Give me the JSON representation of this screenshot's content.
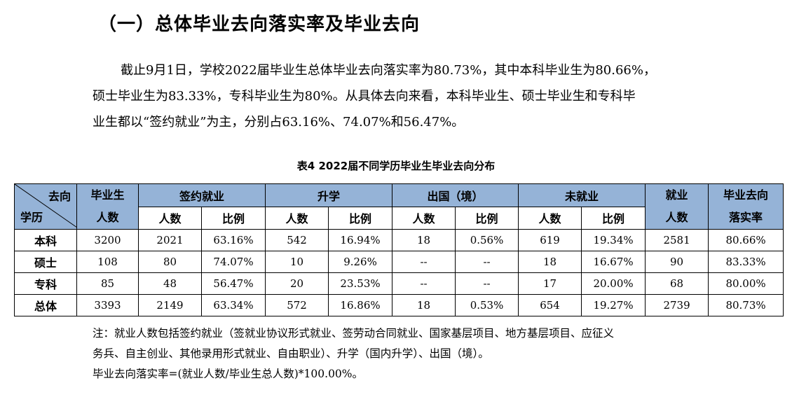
{
  "heading": "（一）总体毕业去向落实率及毕业去向",
  "paragraph": {
    "line1": "截止9月1日，学校2022届毕业生总体毕业去向落实率为80.73%，其中本科毕业生为80.66%，",
    "line2": "硕士毕业生为83.33%，专科毕业生为80%。从具体去向来看，本科毕业生、硕士毕业生和专科毕",
    "line3": "业生都以“签约就业”为主，分别占63.16%、74.07%和56.47%。"
  },
  "table": {
    "caption": "表4  2022届不同学历毕业生毕业去向分布",
    "header": {
      "corner_top": "去向",
      "corner_bottom": "学历",
      "graduates_top": "毕业生",
      "graduates_bottom": "人数",
      "signed": "签约就业",
      "further_study": "升学",
      "abroad": "出国（境）",
      "unemployed": "未就业",
      "employed_top": "就业",
      "employed_bottom": "人数",
      "rate_top": "毕业去向",
      "rate_bottom": "落实率",
      "sub_count": "人数",
      "sub_ratio": "比例"
    },
    "rows": [
      {
        "label": "本科",
        "graduates": "3200",
        "signed_n": "2021",
        "signed_p": "63.16%",
        "study_n": "542",
        "study_p": "16.94%",
        "abroad_n": "18",
        "abroad_p": "0.56%",
        "unemp_n": "619",
        "unemp_p": "19.34%",
        "employed": "2581",
        "rate": "80.66%"
      },
      {
        "label": "硕士",
        "graduates": "108",
        "signed_n": "80",
        "signed_p": "74.07%",
        "study_n": "10",
        "study_p": "9.26%",
        "abroad_n": "--",
        "abroad_p": "--",
        "unemp_n": "18",
        "unemp_p": "16.67%",
        "employed": "90",
        "rate": "83.33%"
      },
      {
        "label": "专科",
        "graduates": "85",
        "signed_n": "48",
        "signed_p": "56.47%",
        "study_n": "20",
        "study_p": "23.53%",
        "abroad_n": "--",
        "abroad_p": "--",
        "unemp_n": "17",
        "unemp_p": "20.00%",
        "employed": "68",
        "rate": "80.00%"
      },
      {
        "label": "总体",
        "graduates": "3393",
        "signed_n": "2149",
        "signed_p": "63.34%",
        "study_n": "572",
        "study_p": "16.86%",
        "abroad_n": "18",
        "abroad_p": "0.53%",
        "unemp_n": "654",
        "unemp_p": "19.27%",
        "employed": "2739",
        "rate": "80.73%"
      }
    ]
  },
  "notes": {
    "line1": "注：就业人数包括签约就业（签就业协议形式就业、签劳动合同就业、国家基层项目、地方基层项目、应征义",
    "line2": "务兵、自主创业、其他录用形式就业、自由职业）、升学（国内升学）、出国（境）。",
    "line3": "毕业去向落实率=(就业人数/毕业生总人数)*100.00%。"
  },
  "colors": {
    "header_fill": "#95b3d7",
    "border": "#000000"
  }
}
